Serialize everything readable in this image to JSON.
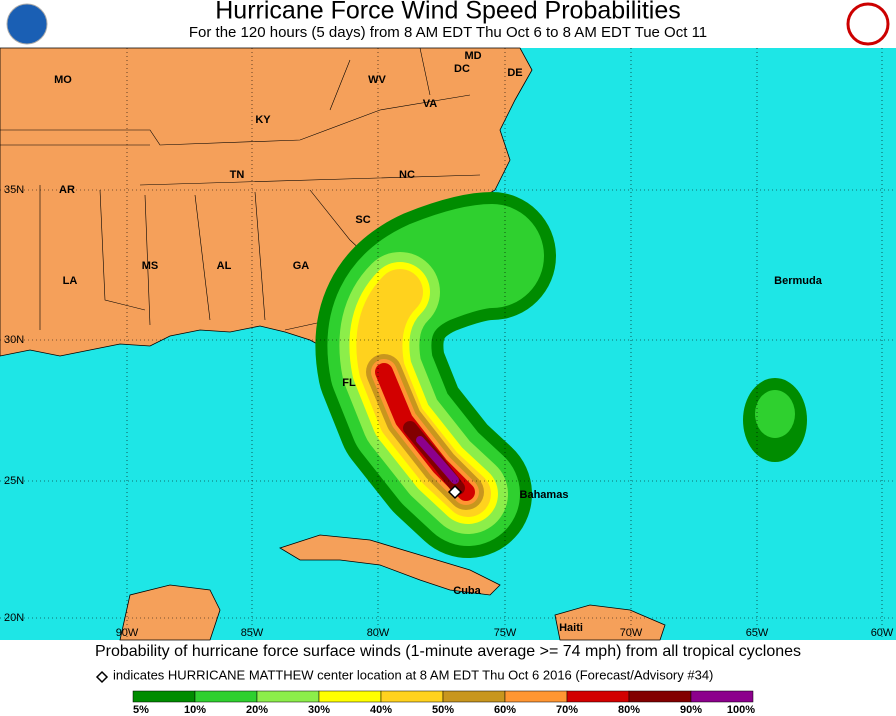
{
  "header": {
    "title": "Hurricane Force Wind Speed Probabilities",
    "subtitle": "For the 120 hours (5 days) from 8 AM EDT Thu Oct 6 to 8 AM EDT Tue Oct 11"
  },
  "map": {
    "state_labels": [
      "MO",
      "KY",
      "WV",
      "VA",
      "MD",
      "DC",
      "DE",
      "TN",
      "NC",
      "AR",
      "SC",
      "MS",
      "AL",
      "GA",
      "LA",
      "FL"
    ],
    "place_labels": [
      "Bermuda",
      "Bahamas",
      "Cuba",
      "Haiti"
    ],
    "lat_labels": [
      "35N",
      "30N",
      "25N",
      "20N"
    ],
    "lon_labels": [
      "90W",
      "85W",
      "80W",
      "75W",
      "70W",
      "65W",
      "60W"
    ]
  },
  "caption": {
    "line1": "Probability of hurricane force surface winds (1-minute average >= 74 mph) from all tropical cyclones",
    "line2": "indicates HURRICANE MATTHEW center location at 8 AM EDT Thu Oct 6 2016 (Forecast/Advisory #34)"
  },
  "legend": {
    "labels": [
      "5%",
      "10%",
      "20%",
      "30%",
      "40%",
      "50%",
      "60%",
      "70%",
      "80%",
      "90%",
      "100%"
    ],
    "colors": [
      "#008c00",
      "#2fd02f",
      "#8cee4a",
      "#ffff00",
      "#ffd21e",
      "#c8961e",
      "#ff9632",
      "#d20000",
      "#820000",
      "#8c008c"
    ]
  }
}
